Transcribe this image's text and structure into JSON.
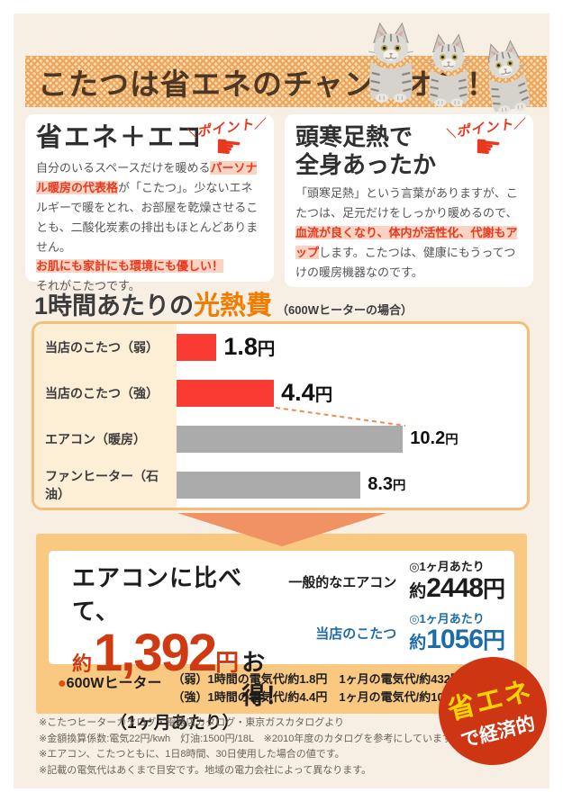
{
  "colors": {
    "panel_bg": "#f7efe3",
    "banner_stripe": "#eda45c",
    "banner_text": "#4b3723",
    "highlight_bg": "#fbd3c2",
    "highlight_text": "#e8391f",
    "accent_orange": "#f27c00",
    "bar_red": "#fa3b33",
    "bar_gray": "#ababab",
    "chart_border": "#f6bd77",
    "section_orange": "#f9c981",
    "arrow_orange": "#f19264",
    "savings_red": "#cf3a12",
    "compare_blue": "#1e6ca6",
    "badge_red": "#ce3512",
    "badge_yellow": "#ffd500"
  },
  "banner": {
    "title": "こたつは省エネのチャンピオン！"
  },
  "cards": {
    "left": {
      "badge": "ポイント",
      "title": "省エネ＋エコ",
      "seg1": "自分のいるスペースだけを暖める",
      "seg2": "パーソナル暖房の代表格",
      "seg3": "が「こたつ」。少ないエネルギーで暖をとれ、お部屋を乾燥させることも、二酸化炭素の排出もほとんどありません。",
      "seg4": "お肌にも家計にも環境にも優しい！",
      "seg5": "それがこたつです。"
    },
    "right": {
      "badge": "ポイント",
      "title_line1": "頭寒足熱で",
      "title_line2": "全身あったか",
      "seg1": "「頭寒足熱」という言葉がありますが、こたつは、足元だけをしっかり暖めるので、",
      "seg2": "血流が良くなり、体内が活性化、代謝もアップ",
      "seg3": "します。こたつは、健康にもうってつけの暖房機器なのです。"
    }
  },
  "chart_section": {
    "title_prefix": "1時間あたりの",
    "title_accent": "光熱費",
    "title_note": "（600Wヒーターの場合）"
  },
  "chart_data": {
    "type": "bar",
    "orientation": "horizontal",
    "title": "1時間あたりの光熱費（600Wヒーターの場合）",
    "unit": "円",
    "categories": [
      "当店のこたつ（弱）",
      "当店のこたつ（強）",
      "エアコン（暖房）",
      "ファンヒーター（石油）"
    ],
    "values": [
      1.8,
      4.4,
      10.2,
      8.3
    ],
    "value_labels": [
      "1.8",
      "4.4",
      "10.2",
      "8.3"
    ],
    "bar_colors": [
      "#fa3b33",
      "#fa3b33",
      "#ababab",
      "#ababab"
    ],
    "axis_max": 15.8,
    "grid": false,
    "legend": false,
    "annotation": "dashed orange connector from 当店のこたつ（強） bar end down to エアコン（暖房） bar end"
  },
  "savings": {
    "lead": "エアコンに比べて、",
    "approx": "約",
    "amount": "1,392",
    "unit": "円",
    "tail": "お得！",
    "per_note": "（1ヶ月あたり）",
    "rows": [
      {
        "name": "一般的なエアコン",
        "per": "◎1ヶ月あたり",
        "approx": "約",
        "amount": "2448",
        "unit": "円"
      },
      {
        "name": "当店のこたつ",
        "per": "◎1ヶ月あたり",
        "approx": "約",
        "amount": "1056",
        "unit": "円"
      }
    ]
  },
  "heater_note": {
    "bullet": "●",
    "label": "600Wヒーター",
    "line1": "（弱）1時間の電気代/約1.8円　1ヶ月の電気代/約432円",
    "line2": "（強）1時間の電気代/約4.4円　1ヶ月の電気代/約1056円"
  },
  "badge_circle": {
    "line1": "省エネ",
    "line2": "で経済的"
  },
  "footnotes": {
    "line1": "※こたつヒーターカタログ・電器店カタログ・東京ガスカタログより",
    "line2": "※金額換算係数:電気22円/kwh　灯油:1500円/18L　※2010年度のカタログを参考にしています。",
    "line3": "※エアコン、こたつともに、1日8時間、30日使用した場合の値です。",
    "line4": "※記載の電気代はあくまで目安です。地域の電力会社によって異なります。"
  }
}
